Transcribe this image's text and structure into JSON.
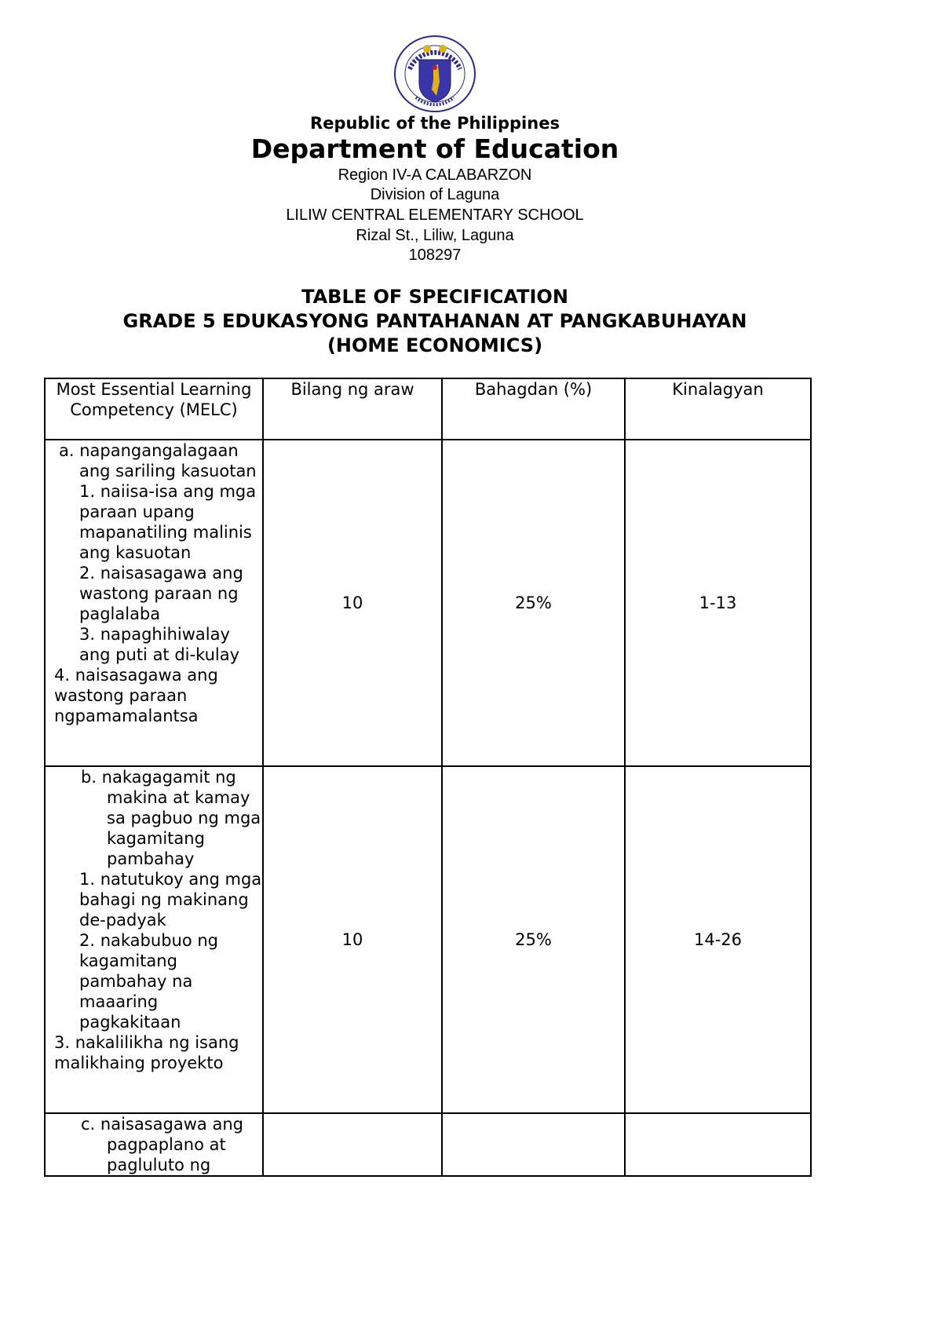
{
  "seal": {
    "ring_text_top": "KAGAWARAN NG EDUKASYON",
    "ring_text_bottom": "REPUBLIKA NG PILIPINAS",
    "colors": {
      "shield": "#3a36a8",
      "gold": "#e0b020"
    }
  },
  "header": {
    "republic": "Republic of the Philippines",
    "department": "Department of Education",
    "region": "Region IV-A CALABARZON",
    "division": "Division of Laguna",
    "school": "LILIW CENTRAL ELEMENTARY SCHOOL",
    "address": "Rizal St., Liliw, Laguna",
    "school_id": "108297"
  },
  "title": {
    "line1": "TABLE OF SPECIFICATION",
    "line2": "GRADE 5 EDUKASYONG PANTAHANAN AT PANGKABUHAYAN",
    "line3": "(HOME ECONOMICS)"
  },
  "table": {
    "columns": [
      "Most Essential Learning Competency (MELC)",
      "Bilang ng araw",
      "Bahagdan (%)",
      "Kinalagyan"
    ],
    "rows": [
      {
        "main": "a. napangangalagaan ang sariling kasuotan",
        "subs": [
          "1. naiisa-isa ang mga paraan upang mapanatiling malinis ang kasuotan",
          "2. naisasagawa ang wastong paraan ng paglalaba",
          "3. napaghihiwalay ang puti at di-kulay"
        ],
        "extra": "4. naisasagawa ang wastong paraan ngpamamalantsa",
        "days": "10",
        "percent": "25%",
        "placement": "1-13"
      },
      {
        "main": "b.  nakagagamit ng makina at kamay sa pagbuo ng mga kagamitang pambahay",
        "subs": [
          "1. natutukoy ang mga bahagi ng makinang de-padyak",
          "2. nakabubuo ng kagamitang pambahay na maaaring pagkakitaan"
        ],
        "extra": "3. nakalilikha ng isang malikhaing proyekto",
        "days": "10",
        "percent": "25%",
        "placement": "14-26"
      },
      {
        "main": "c.  naisasagawa ang pagpaplano at pagluluto ng",
        "days": "",
        "percent": "",
        "placement": ""
      }
    ]
  }
}
